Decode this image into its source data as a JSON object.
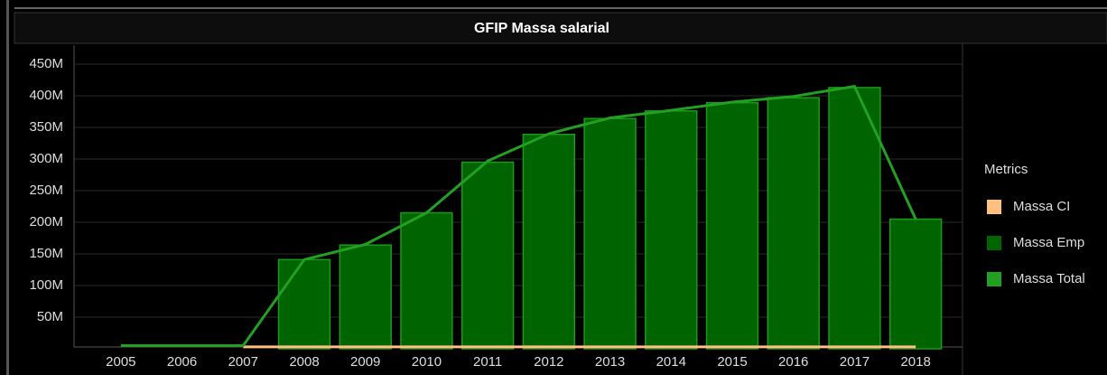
{
  "chart_data": {
    "type": "bar",
    "title": "GFIP Massa salarial",
    "categories": [
      "2005",
      "2006",
      "2007",
      "2008",
      "2009",
      "2010",
      "2011",
      "2012",
      "2013",
      "2014",
      "2015",
      "2016",
      "2017",
      "2018"
    ],
    "series": [
      {
        "name": "Massa CI",
        "type": "line",
        "color": "#ffc080",
        "values": [
          null,
          null,
          3000000,
          3000000,
          3000000,
          3000000,
          3000000,
          3000000,
          3000000,
          3000000,
          3000000,
          3000000,
          3000000,
          3000000
        ]
      },
      {
        "name": "Massa Emp",
        "type": "bar",
        "color": "#006400",
        "values": [
          null,
          null,
          null,
          141000000,
          164000000,
          215000000,
          295000000,
          339000000,
          364000000,
          376000000,
          389000000,
          397000000,
          413000000,
          205000000
        ]
      },
      {
        "name": "Massa Total",
        "type": "line",
        "color": "#22a022",
        "values": [
          5000000,
          5000000,
          5000000,
          141000000,
          165000000,
          215000000,
          297000000,
          340000000,
          365000000,
          377000000,
          390000000,
          399000000,
          415000000,
          205000000
        ]
      }
    ],
    "ylim": [
      0,
      480000000
    ],
    "yticks": [
      {
        "value": 50000000,
        "label": "50M"
      },
      {
        "value": 100000000,
        "label": "100M"
      },
      {
        "value": 150000000,
        "label": "150M"
      },
      {
        "value": 200000000,
        "label": "200M"
      },
      {
        "value": 250000000,
        "label": "250M"
      },
      {
        "value": 300000000,
        "label": "300M"
      },
      {
        "value": 350000000,
        "label": "350M"
      },
      {
        "value": 400000000,
        "label": "400M"
      },
      {
        "value": 450000000,
        "label": "450M"
      }
    ],
    "grid": true,
    "legend_title": "Metrics",
    "legend": "right"
  }
}
